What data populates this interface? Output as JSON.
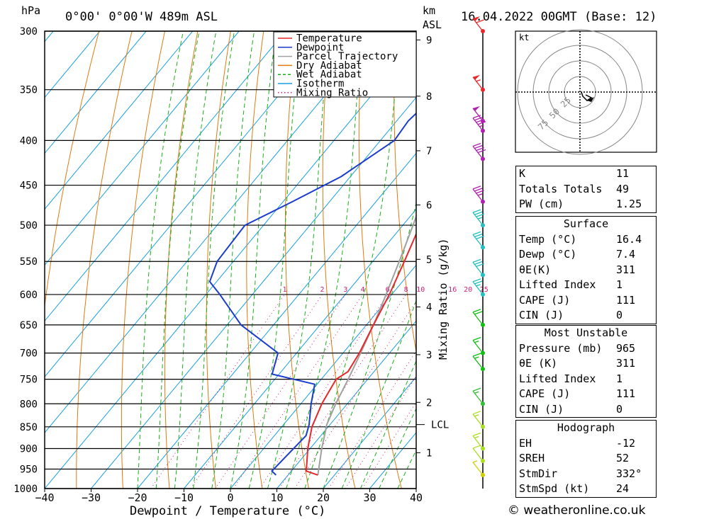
{
  "header": {
    "hpa": "hPa",
    "location": "0°00' 0°00'W 489m ASL",
    "km": "km",
    "asl": "ASL",
    "date": "16.04.2022 00GMT (Base: 12)"
  },
  "chart_data": {
    "type": "line",
    "xlabel": "Dewpoint / Temperature (°C)",
    "ylabel_right": "Mixing Ratio (g/kg)",
    "xlim": [
      -40,
      40
    ],
    "ylim": [
      1000,
      300
    ],
    "x_ticks": [
      -40,
      -30,
      -20,
      -10,
      0,
      10,
      20,
      30,
      40
    ],
    "pressure_levels": [
      300,
      350,
      400,
      450,
      500,
      550,
      600,
      650,
      700,
      750,
      800,
      850,
      900,
      950,
      1000
    ],
    "km_ticks": [
      {
        "label": "1",
        "p": 910
      },
      {
        "label": "2",
        "p": 797
      },
      {
        "label": "3",
        "p": 703
      },
      {
        "label": "4",
        "p": 620
      },
      {
        "label": "5",
        "p": 547
      },
      {
        "label": "6",
        "p": 474
      },
      {
        "label": "7",
        "p": 411
      },
      {
        "label": "8",
        "p": 356
      },
      {
        "label": "9",
        "p": 307
      }
    ],
    "lcl": {
      "label": "LCL",
      "p": 845
    },
    "mixing_ratio_labels": [
      "1",
      "2",
      "3",
      "4",
      "6",
      "8",
      "10",
      "16",
      "20",
      "25"
    ],
    "legend": [
      {
        "name": "Temperature",
        "color": "#e8272b",
        "style": "solid"
      },
      {
        "name": "Dewpoint",
        "color": "#1c3ccc",
        "style": "solid"
      },
      {
        "name": "Parcel Trajectory",
        "color": "#a0a0a0",
        "style": "solid"
      },
      {
        "name": "Dry Adiabat",
        "color": "#e07a10",
        "style": "solid"
      },
      {
        "name": "Wet Adiabat",
        "color": "#19b019",
        "style": "dashed"
      },
      {
        "name": "Isotherm",
        "color": "#1aa0e0",
        "style": "solid"
      },
      {
        "name": "Mixing Ratio",
        "color": "#d0207a",
        "style": "dotted"
      }
    ],
    "series": [
      {
        "name": "Temperature",
        "color": "#e8272b",
        "points": [
          [
            16.4,
            965
          ],
          [
            13.2,
            955
          ],
          [
            9.5,
            900
          ],
          [
            6.5,
            850
          ],
          [
            4.5,
            800
          ],
          [
            3.2,
            750
          ],
          [
            4.4,
            735
          ],
          [
            3.5,
            700
          ],
          [
            1.5,
            650
          ],
          [
            -0.5,
            600
          ],
          [
            -3.2,
            550
          ],
          [
            -6.3,
            500
          ],
          [
            -7.5,
            470
          ],
          [
            -9.8,
            450
          ],
          [
            -13.5,
            400
          ],
          [
            -17.0,
            350
          ],
          [
            -17.5,
            330
          ],
          [
            -18.5,
            315
          ],
          [
            -20.5,
            300
          ]
        ]
      },
      {
        "name": "Dewpoint",
        "color": "#1c3ccc",
        "points": [
          [
            7.4,
            965
          ],
          [
            5.8,
            955
          ],
          [
            6.2,
            920
          ],
          [
            6.8,
            870
          ],
          [
            5.5,
            845
          ],
          [
            2.2,
            800
          ],
          [
            -0.5,
            760
          ],
          [
            -11.5,
            740
          ],
          [
            -14.0,
            700
          ],
          [
            -27.0,
            650
          ],
          [
            -37.0,
            600
          ],
          [
            -41.5,
            580
          ],
          [
            -43.5,
            550
          ],
          [
            -44.0,
            500
          ],
          [
            -38.0,
            470
          ],
          [
            -32.0,
            440
          ],
          [
            -27.0,
            400
          ],
          [
            -27.5,
            380
          ],
          [
            -26.0,
            350
          ],
          [
            -32.0,
            330
          ],
          [
            -34.0,
            315
          ],
          [
            -29.0,
            305
          ],
          [
            -30.0,
            300
          ]
        ]
      },
      {
        "name": "Parcel Trajectory",
        "color": "#a0a0a0",
        "points": [
          [
            16.4,
            965
          ],
          [
            12.5,
            900
          ],
          [
            10.2,
            860
          ],
          [
            9.3,
            845
          ],
          [
            7.5,
            800
          ],
          [
            5.8,
            750
          ],
          [
            3.8,
            700
          ],
          [
            1.5,
            650
          ],
          [
            -1.2,
            600
          ],
          [
            -4.3,
            550
          ],
          [
            -7.8,
            500
          ],
          [
            -11.8,
            450
          ],
          [
            -16.0,
            400
          ],
          [
            -20.5,
            350
          ],
          [
            -25.0,
            300
          ]
        ]
      }
    ],
    "wind_barbs": [
      {
        "p": 965,
        "speed_kt": 5,
        "color": "#d0d000"
      },
      {
        "p": 930,
        "speed_kt": 10,
        "color": "#a8e020"
      },
      {
        "p": 900,
        "speed_kt": 15,
        "color": "#a8e020"
      },
      {
        "p": 850,
        "speed_kt": 15,
        "color": "#a8e020"
      },
      {
        "p": 800,
        "speed_kt": 15,
        "color": "#30c030"
      },
      {
        "p": 730,
        "speed_kt": 15,
        "color": "#10c010"
      },
      {
        "p": 700,
        "speed_kt": 15,
        "color": "#10c010"
      },
      {
        "p": 650,
        "speed_kt": 20,
        "color": "#10c010"
      },
      {
        "p": 600,
        "speed_kt": 25,
        "color": "#20c0c0"
      },
      {
        "p": 570,
        "speed_kt": 30,
        "color": "#20c0c0"
      },
      {
        "p": 530,
        "speed_kt": 30,
        "color": "#20c0c0"
      },
      {
        "p": 500,
        "speed_kt": 35,
        "color": "#20c0c0"
      },
      {
        "p": 470,
        "speed_kt": 35,
        "color": "#b020b0"
      },
      {
        "p": 420,
        "speed_kt": 40,
        "color": "#b020b0"
      },
      {
        "p": 390,
        "speed_kt": 45,
        "color": "#b020b0"
      },
      {
        "p": 380,
        "speed_kt": 50,
        "color": "#b020b0"
      },
      {
        "p": 350,
        "speed_kt": 55,
        "color": "#e8272b"
      },
      {
        "p": 300,
        "speed_kt": 60,
        "color": "#e8272b"
      }
    ],
    "hodograph": {
      "unit": "kt",
      "ring_labels": [
        "25",
        "50",
        "75"
      ],
      "points": [
        [
          1,
          0
        ],
        [
          2,
          -3
        ],
        [
          5,
          -6
        ],
        [
          8,
          -4
        ],
        [
          4,
          -2
        ]
      ]
    }
  },
  "indices": {
    "rows": [
      {
        "label": "K",
        "value": "11"
      },
      {
        "label": "Totals Totals",
        "value": "49"
      },
      {
        "label": "PW (cm)",
        "value": "1.25"
      }
    ]
  },
  "surface": {
    "title": "Surface",
    "rows": [
      {
        "label": "Temp (°C)",
        "value": "16.4"
      },
      {
        "label": "Dewp (°C)",
        "value": "7.4"
      },
      {
        "label": "θE(K)",
        "value": "311"
      },
      {
        "label": "Lifted Index",
        "value": "1"
      },
      {
        "label": "CAPE (J)",
        "value": "111"
      },
      {
        "label": "CIN (J)",
        "value": "0"
      }
    ]
  },
  "most_unstable": {
    "title": "Most Unstable",
    "rows": [
      {
        "label": "Pressure (mb)",
        "value": "965"
      },
      {
        "label": "θE (K)",
        "value": "311"
      },
      {
        "label": "Lifted Index",
        "value": "1"
      },
      {
        "label": "CAPE (J)",
        "value": "111"
      },
      {
        "label": "CIN (J)",
        "value": "0"
      }
    ]
  },
  "hodograph_table": {
    "title": "Hodograph",
    "rows": [
      {
        "label": "EH",
        "value": "-12"
      },
      {
        "label": "SREH",
        "value": "52"
      },
      {
        "label": "StmDir",
        "value": "332°"
      },
      {
        "label": "StmSpd (kt)",
        "value": "24"
      }
    ]
  },
  "footer": {
    "credit": "© weatheronline.co.uk"
  }
}
